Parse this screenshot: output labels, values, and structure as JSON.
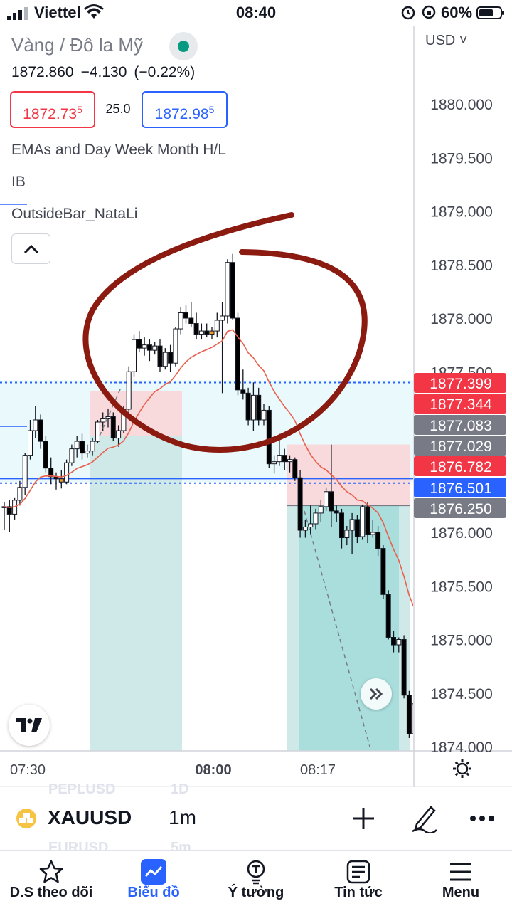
{
  "status_bar": {
    "carrier": "Viettel",
    "time": "08:40",
    "battery": "60%"
  },
  "header": {
    "title": "Vàng / Đô la Mỹ",
    "last_price": "1872.860",
    "change": "−4.130",
    "change_pct": "(−0.22%)",
    "sell_price": "1872.73",
    "sell_price_sup": "5",
    "spread": "25.0",
    "buy_price": "1872.98",
    "buy_price_sup": "5",
    "indicators": [
      "EMAs and Day Week Month H/L",
      "IB",
      "OutsideBar_NataLi"
    ]
  },
  "currency": "USD",
  "colors": {
    "up_candle": "#ffffff",
    "down_candle": "#000000",
    "highlight_candle": "#f39c25",
    "ema": "#e8604c",
    "sell": "#f23645",
    "buy": "#2962ff",
    "annotation": "#8b1a10",
    "accent": "#2962ff"
  },
  "chart_data": {
    "type": "candlestick",
    "symbol": "XAUUSD",
    "interval": "1m",
    "y_ticks": [
      "1880.000",
      "1879.500",
      "1879.000",
      "1878.500",
      "1878.000",
      "1877.500",
      "1876.000",
      "1875.500",
      "1875.000",
      "1874.500",
      "1874.000"
    ],
    "x_ticks": [
      "07:30",
      "08:00",
      "08:17"
    ],
    "price_labels": [
      {
        "value": "1877.399",
        "color": "#f23645"
      },
      {
        "value": "1877.344",
        "color": "#f23645"
      },
      {
        "value": "1877.083",
        "color": "#787b86"
      },
      {
        "value": "1877.029",
        "color": "#787b86"
      },
      {
        "value": "1876.782",
        "color": "#f23645"
      },
      {
        "value": "1876.501",
        "color": "#2962ff"
      },
      {
        "value": "1876.250",
        "color": "#787b86"
      }
    ],
    "candles": [
      [
        1876.23,
        1876.28,
        1876.02,
        1876.24
      ],
      [
        1876.24,
        1876.3,
        1876.0,
        1876.17
      ],
      [
        1876.17,
        1876.32,
        1876.12,
        1876.3
      ],
      [
        1876.3,
        1876.48,
        1876.25,
        1876.42
      ],
      [
        1876.42,
        1876.74,
        1876.35,
        1876.72
      ],
      [
        1876.72,
        1877.05,
        1876.68,
        1876.95
      ],
      [
        1876.95,
        1877.18,
        1876.88,
        1877.05
      ],
      [
        1877.05,
        1877.1,
        1876.78,
        1876.85
      ],
      [
        1876.85,
        1876.9,
        1876.56,
        1876.6
      ],
      [
        1876.6,
        1876.7,
        1876.45,
        1876.52
      ],
      [
        1876.52,
        1876.56,
        1876.4,
        1876.5
      ],
      [
        1876.5,
        1876.58,
        1876.41,
        1876.47
      ],
      [
        1876.47,
        1876.68,
        1876.45,
        1876.65
      ],
      [
        1876.65,
        1876.82,
        1876.62,
        1876.78
      ],
      [
        1876.78,
        1876.9,
        1876.7,
        1876.85
      ],
      [
        1876.85,
        1876.92,
        1876.68,
        1876.74
      ],
      [
        1876.74,
        1876.82,
        1876.7,
        1876.76
      ],
      [
        1876.76,
        1876.88,
        1876.72,
        1876.85
      ],
      [
        1876.85,
        1877.05,
        1876.83,
        1877.03
      ],
      [
        1877.03,
        1877.12,
        1876.95,
        1877.06
      ],
      [
        1877.06,
        1877.15,
        1876.98,
        1877.08
      ],
      [
        1877.08,
        1877.12,
        1876.85,
        1876.88
      ],
      [
        1876.88,
        1877.0,
        1876.8,
        1876.95
      ],
      [
        1876.95,
        1877.18,
        1876.93,
        1877.15
      ],
      [
        1877.15,
        1877.55,
        1877.1,
        1877.5
      ],
      [
        1877.5,
        1877.85,
        1877.45,
        1877.8
      ],
      [
        1877.8,
        1877.88,
        1877.68,
        1877.72
      ],
      [
        1877.72,
        1877.82,
        1877.65,
        1877.75
      ],
      [
        1877.75,
        1877.8,
        1877.6,
        1877.7
      ],
      [
        1877.7,
        1877.78,
        1877.66,
        1877.74
      ],
      [
        1877.74,
        1877.8,
        1877.5,
        1877.55
      ],
      [
        1877.55,
        1877.72,
        1877.52,
        1877.68
      ],
      [
        1877.68,
        1877.75,
        1877.5,
        1877.58
      ],
      [
        1877.58,
        1877.92,
        1877.55,
        1877.9
      ],
      [
        1877.9,
        1878.1,
        1877.85,
        1878.05
      ],
      [
        1878.05,
        1878.12,
        1877.95,
        1878.0
      ],
      [
        1878.0,
        1878.15,
        1877.92,
        1877.95
      ],
      [
        1877.95,
        1878.05,
        1877.8,
        1877.85
      ],
      [
        1877.85,
        1877.95,
        1877.8,
        1877.88
      ],
      [
        1877.88,
        1877.95,
        1877.82,
        1877.85
      ],
      [
        1877.85,
        1877.92,
        1877.8,
        1877.88
      ],
      [
        1877.88,
        1878.05,
        1877.82,
        1877.98
      ],
      [
        1877.98,
        1878.15,
        1877.3,
        1878.02
      ],
      [
        1878.02,
        1878.55,
        1877.95,
        1878.52
      ],
      [
        1878.52,
        1878.6,
        1877.98,
        1878.0
      ],
      [
        1878.0,
        1878.05,
        1877.28,
        1877.33
      ],
      [
        1877.33,
        1877.52,
        1877.24,
        1877.3
      ],
      [
        1877.3,
        1877.35,
        1877.0,
        1877.05
      ],
      [
        1877.05,
        1877.4,
        1876.95,
        1877.28
      ],
      [
        1877.28,
        1877.35,
        1877.0,
        1877.05
      ],
      [
        1877.05,
        1877.2,
        1877.0,
        1877.14
      ],
      [
        1877.14,
        1877.18,
        1876.6,
        1876.64
      ],
      [
        1876.64,
        1876.72,
        1876.55,
        1876.66
      ],
      [
        1876.66,
        1876.92,
        1876.62,
        1876.72
      ],
      [
        1876.72,
        1876.78,
        1876.58,
        1876.66
      ],
      [
        1876.66,
        1876.72,
        1876.56,
        1876.68
      ],
      [
        1876.68,
        1876.7,
        1876.48,
        1876.51
      ],
      [
        1876.51,
        1876.58,
        1875.95,
        1876.02
      ],
      [
        1876.02,
        1876.12,
        1875.95,
        1876.05
      ],
      [
        1876.05,
        1876.25,
        1875.98,
        1876.08
      ],
      [
        1876.08,
        1876.22,
        1876.03,
        1876.18
      ],
      [
        1876.18,
        1876.3,
        1876.1,
        1876.24
      ],
      [
        1876.24,
        1876.42,
        1876.2,
        1876.38
      ],
      [
        1876.38,
        1876.82,
        1876.05,
        1876.2
      ],
      [
        1876.2,
        1876.25,
        1876.1,
        1876.18
      ],
      [
        1876.18,
        1876.22,
        1875.85,
        1875.95
      ],
      [
        1875.95,
        1876.06,
        1875.88,
        1876.02
      ],
      [
        1876.02,
        1876.18,
        1875.8,
        1876.12
      ],
      [
        1876.12,
        1876.16,
        1875.9,
        1875.96
      ],
      [
        1875.96,
        1876.26,
        1875.93,
        1876.24
      ],
      [
        1876.24,
        1876.28,
        1875.9,
        1875.98
      ],
      [
        1875.98,
        1876.12,
        1875.95,
        1876.0
      ],
      [
        1876.0,
        1876.06,
        1875.78,
        1875.85
      ],
      [
        1875.85,
        1875.88,
        1875.38,
        1875.42
      ],
      [
        1875.42,
        1875.46,
        1875.0,
        1875.02
      ],
      [
        1875.02,
        1875.08,
        1874.88,
        1874.95
      ],
      [
        1874.95,
        1875.02,
        1874.88,
        1875.0
      ],
      [
        1875.0,
        1875.04,
        1874.45,
        1874.48
      ],
      [
        1874.48,
        1874.52,
        1874.08,
        1874.12
      ],
      [
        1874.12,
        1874.5,
        1874.0,
        1874.4
      ],
      [
        1874.4,
        1874.45,
        1874.0,
        1874.15
      ],
      [
        1874.15,
        1874.2,
        1873.95,
        1874.05
      ],
      [
        1874.05,
        1874.08,
        1873.88,
        1873.92
      ]
    ]
  },
  "symbol_bar": {
    "symbol": "XAUUSD",
    "interval": "1m",
    "ghost_rows": [
      "PEPLUSD",
      "1D",
      "EURUSD",
      "5m"
    ]
  },
  "nav": {
    "items": [
      {
        "label": "D.S theo dõi",
        "icon": "star-icon"
      },
      {
        "label": "Biểu đồ",
        "icon": "chart-icon",
        "active": true
      },
      {
        "label": "Ý tưởng",
        "icon": "idea-icon"
      },
      {
        "label": "Tin tức",
        "icon": "news-icon"
      },
      {
        "label": "Menu",
        "icon": "menu-icon"
      }
    ]
  }
}
